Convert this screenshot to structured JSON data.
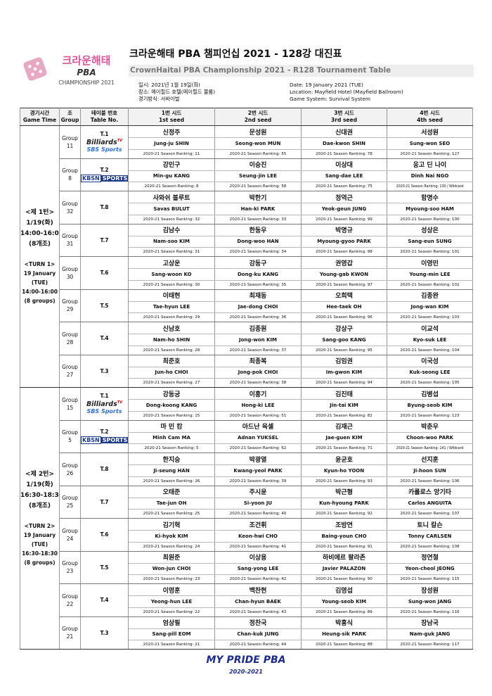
{
  "header": {
    "logo": {
      "kr": "크라운해태",
      "pba": "PBA",
      "sub": "CHAMPIONSHIP 2021"
    },
    "title": "크라운해태 PBA 챔피언십 2021 - 128강 대진표",
    "subtitle": "CrownHaitai PBA Championship 2021 - R128 Tournament Table",
    "info_kr": [
      "일시: 2021년 1월 19일(화)",
      "장소: 메이필드 호텔(메이필드 볼룸)",
      "경기방식: 서바이벌"
    ],
    "info_en": [
      "Date: 19 January 2021 (TUE)",
      "Location: Mayfield Hotel (Mayfield Ballroom)",
      "Game System: Survival System"
    ]
  },
  "table": {
    "columns": [
      [
        "경기시간",
        "Game Time"
      ],
      [
        "조",
        "Group"
      ],
      [
        "테이블 번호",
        "Table No."
      ],
      [
        "1번 시드",
        "1st seed"
      ],
      [
        "2번 시드",
        "2nd seed"
      ],
      [
        "3번 시드",
        "3rd seed"
      ],
      [
        "4번 시드",
        "4th seed"
      ]
    ],
    "turns": [
      {
        "time": [
          "<제 1턴>",
          "1/19(화)",
          "14:00-16:00",
          "(8개조)",
          "<TURN 1>",
          "19 January",
          "(TUE)",
          "14:00-16:00",
          "(8 groups)"
        ],
        "groups": [
          {
            "group": "Group 11",
            "table": "T.1",
            "logo": [
              "Billiards",
              "TV",
              "SBS Sports"
            ],
            "players": [
              [
                "신정주",
                "Jung-ju SHIN",
                "2020-21 Season Ranking: 11"
              ],
              [
                "문성원",
                "Seong-won MUN",
                "2020-21 Season Ranking: 55"
              ],
              [
                "신대권",
                "Dae-kwon SHIN",
                "2020-21 Season Ranking: 78"
              ],
              [
                "서성원",
                "Sung-won SEO",
                "2020-21 Season Ranking: 127"
              ]
            ]
          },
          {
            "group": "Group 8",
            "table": "T.2",
            "logo": [
              "KBSN",
              "SPORTS"
            ],
            "players": [
              [
                "강민구",
                "Min-gu KANG",
                "2020-21 Season Ranking: 8"
              ],
              [
                "이승진",
                "Seung-jin LEE",
                "2020-21 Season Ranking: 58"
              ],
              [
                "이상대",
                "Sang-dae LEE",
                "2020-21 Season Ranking: 75"
              ],
              [
                "응고 딘 나이",
                "Dinh Nai NGO",
                "2020-21 Season Ranking: 130 / Wildcard"
              ]
            ]
          },
          {
            "group": "Group 32",
            "table": "T.8",
            "players": [
              [
                "사와쉬 블루트",
                "Savas BULUT",
                "2020-21 Season Ranking: 32"
              ],
              [
                "박한기",
                "Han-ki PARK",
                "2020-21 Season Ranking: 33"
              ],
              [
                "정역근",
                "Yeok-geun JUNG",
                "2020-21 Season Ranking: 99"
              ],
              [
                "함명수",
                "Myoung-soo HAM",
                "2020-21 Season Ranking: 100"
              ]
            ]
          },
          {
            "group": "Group 31",
            "table": "T.7",
            "players": [
              [
                "김남수",
                "Nam-soo KIM",
                "2020-21 Season Ranking: 31"
              ],
              [
                "한동우",
                "Dong-woo HAN",
                "2020-21 Season Ranking: 34"
              ],
              [
                "박명규",
                "Myoung-gyoo PARK",
                "2020-21 Season Ranking: 98"
              ],
              [
                "성상은",
                "Sang-eun SUNG",
                "2020-21 Season Ranking: 101"
              ]
            ]
          },
          {
            "group": "Group 30",
            "table": "T.6",
            "players": [
              [
                "고상운",
                "Sang-woon KO",
                "2020-21 Season Ranking: 30"
              ],
              [
                "강동구",
                "Dong-ku KANG",
                "2020-21 Season Ranking: 35"
              ],
              [
                "권영갑",
                "Young-gab KWON",
                "2020-21 Season Ranking: 97"
              ],
              [
                "이영민",
                "Young-min LEE",
                "2020-21 Season Ranking: 102"
              ]
            ]
          },
          {
            "group": "Group 29",
            "table": "T.5",
            "players": [
              [
                "이태현",
                "Tae-hyun LEE",
                "2020-21 Season Ranking: 29"
              ],
              [
                "최재동",
                "Jae-dong CHOI",
                "2020-21 Season Ranking: 36"
              ],
              [
                "오희택",
                "Hee-taek OH",
                "2020-21 Season Ranking: 96"
              ],
              [
                "김종완",
                "Jong-wan KIM",
                "2020-21 Season Ranking: 103"
              ]
            ]
          },
          {
            "group": "Group 28",
            "table": "T.4",
            "players": [
              [
                "신남호",
                "Nam-ho SHIN",
                "2020-21 Season Ranking: 28"
              ],
              [
                "김종원",
                "Jong-won KIM",
                "2020-21 Season Ranking: 37"
              ],
              [
                "강상구",
                "Sang-goo KANG",
                "2020-21 Season Ranking: 95"
              ],
              [
                "이교석",
                "Kyo-suk LEE",
                "2020-21 Season Ranking: 104"
              ]
            ]
          },
          {
            "group": "Group 27",
            "table": "T.3",
            "players": [
              [
                "최준호",
                "Jun-ho CHOI",
                "2020-21 Season Ranking: 27"
              ],
              [
                "최종복",
                "Jong-pok CHOI",
                "2020-21 Season Ranking: 38"
              ],
              [
                "김임권",
                "Im-gwon KIM",
                "2020-21 Season Ranking: 94"
              ],
              [
                "이국성",
                "Kuk-seong LEE",
                "2020-21 Season Ranking: 105"
              ]
            ]
          }
        ]
      },
      {
        "time": [
          "<제 2턴>",
          "1/19(화)",
          "16:30-18:30",
          "(8개조)",
          "<TURN 2>",
          "19 January",
          "(TUE)",
          "16:30-18:30",
          "(8 groups)"
        ],
        "groups": [
          {
            "group": "Group 15",
            "table": "T.1",
            "logo": [
              "Billiards",
              "TV",
              "SBS Sports"
            ],
            "players": [
              [
                "강동궁",
                "Dong-koong KANG",
                "2020-21 Season Ranking: 15"
              ],
              [
                "이홍기",
                "Hong-ki LEE",
                "2020-21 Season Ranking: 51"
              ],
              [
                "김진태",
                "Jin-tai KIM",
                "2020-21 Season Ranking: 82"
              ],
              [
                "김병섭",
                "Byung-seob KIM",
                "2020-21 Season Ranking: 123"
              ]
            ]
          },
          {
            "group": "Group 5",
            "table": "T.2",
            "logo": [
              "KBSN",
              "SPORTS"
            ],
            "players": [
              [
                "마 민 캄",
                "Minh Cam MA",
                "2020-21 Season Ranking: 5"
              ],
              [
                "아드난 육셀",
                "Adnan YUKSEL",
                "2020-21 Season Ranking: 62"
              ],
              [
                "김재근",
                "Jae-guen KIM",
                "2020-21 Season Ranking: 71"
              ],
              [
                "박춘우",
                "Choon-woo PARK",
                "2020-21 Season Ranking: 141 / Wildcard"
              ]
            ]
          },
          {
            "group": "Group 26",
            "table": "T.8",
            "players": [
              [
                "한지승",
                "Ji-seung HAN",
                "2020-21 Season Ranking: 26"
              ],
              [
                "박광열",
                "Kwang-yeol PARK",
                "2020-21 Season Ranking: 39"
              ],
              [
                "윤균호",
                "Kyun-ho YOON",
                "2020-21 Season Ranking: 93"
              ],
              [
                "선지훈",
                "Ji-hoon SUN",
                "2020-21 Season Ranking: 106"
              ]
            ]
          },
          {
            "group": "Group 25",
            "table": "T.7",
            "players": [
              [
                "오태준",
                "Tae-jun OH",
                "2020-21 Season Ranking: 25"
              ],
              [
                "주시윤",
                "Si-yoon JU",
                "2020-21 Season Ranking: 40"
              ],
              [
                "박근형",
                "Kun-hyoung PARK",
                "2020-21 Season Ranking: 92"
              ],
              [
                "카를로스 앙기타",
                "Carlos ANGUITA",
                "2020-21 Season Ranking: 107"
              ]
            ]
          },
          {
            "group": "Group 24",
            "table": "T.6",
            "players": [
              [
                "김기혁",
                "Ki-hyok KIM",
                "2020-21 Season Ranking: 24"
              ],
              [
                "조건휘",
                "Keon-hwi CHO",
                "2020-21 Season Ranking: 41"
              ],
              [
                "조방연",
                "Baing-youn CHO",
                "2020-21 Season Ranking: 91"
              ],
              [
                "토니 칼슨",
                "Tonny CARLSEN",
                "2020-21 Season Ranking: 108"
              ]
            ]
          },
          {
            "group": "Group 23",
            "table": "T.5",
            "players": [
              [
                "최원준",
                "Won-jun CHOI",
                "2020-21 Season Ranking: 23"
              ],
              [
                "이상용",
                "Sang-yong LEE",
                "2020-21 Season Ranking: 42"
              ],
              [
                "하비에르 팔라존",
                "Javier PALAZON",
                "2020-21 Season Ranking: 90"
              ],
              [
                "정연철",
                "Yeon-cheol JEONG",
                "2020-21 Season Ranking: 115"
              ]
            ]
          },
          {
            "group": "Group 22",
            "table": "T.4",
            "players": [
              [
                "이영훈",
                "Yeong-hun LEE",
                "2020-21 Season Ranking: 22"
              ],
              [
                "백찬현",
                "Chan-hyun BAEK",
                "2020-21 Season Ranking: 43"
              ],
              [
                "김영섭",
                "Young-seob KIM",
                "2020-21 Season Ranking: 89"
              ],
              [
                "장성원",
                "Sung-won JANG",
                "2020-21 Season Ranking: 116"
              ]
            ]
          },
          {
            "group": "Group 21",
            "table": "T.3",
            "players": [
              [
                "엄상필",
                "Sang-pill EOM",
                "2020-21 Season Ranking: 21"
              ],
              [
                "정찬국",
                "Chan-kuk JUNG",
                "2020-21 Season Ranking: 44"
              ],
              [
                "박흥식",
                "Heung-sik PARK",
                "2020-21 Season Ranking: 88"
              ],
              [
                "장남국",
                "Nam-guk JANG",
                "2020-21 Season Ranking: 117"
              ]
            ]
          }
        ]
      }
    ]
  },
  "footer": {
    "brand": "MY PRIDE PBA",
    "season": "2020-2021"
  }
}
